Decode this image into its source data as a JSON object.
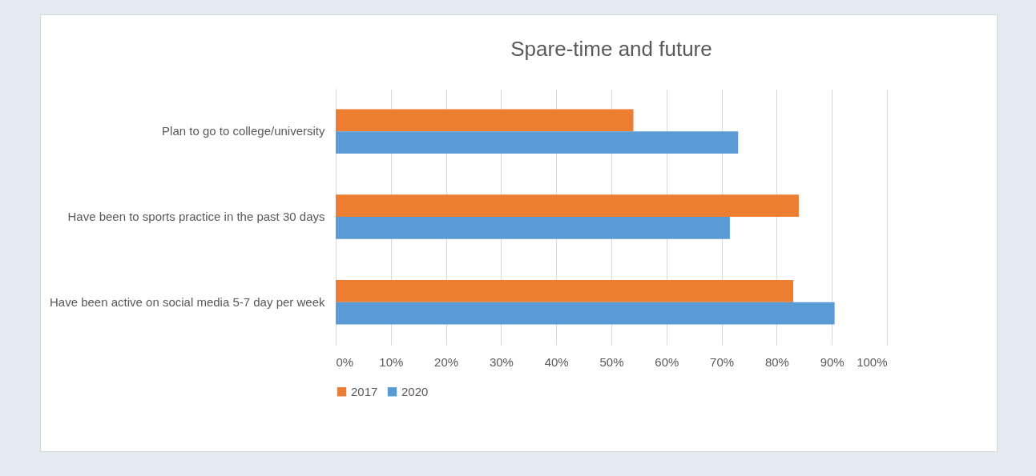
{
  "chart_data": {
    "type": "bar",
    "orientation": "horizontal",
    "title": "Spare-time and future",
    "categories": [
      "Plan to go  to college/university",
      "Have been to sports practice in the past 30 days",
      "Have been active on social media 5-7 day per week"
    ],
    "series": [
      {
        "name": "2017",
        "color": "#ed7d31",
        "values": [
          54,
          84,
          83
        ]
      },
      {
        "name": "2020",
        "color": "#5b9bd5",
        "values": [
          73,
          71.5,
          90.5
        ]
      }
    ],
    "xlim": [
      0,
      100
    ],
    "xticks": [
      {
        "value": 0,
        "label": "0%"
      },
      {
        "value": 10,
        "label": "10%"
      },
      {
        "value": 20,
        "label": "20%"
      },
      {
        "value": 30,
        "label": "30%"
      },
      {
        "value": 40,
        "label": "40%"
      },
      {
        "value": 50,
        "label": "50%"
      },
      {
        "value": 60,
        "label": "60%"
      },
      {
        "value": 70,
        "label": "70%"
      },
      {
        "value": 80,
        "label": "80%"
      },
      {
        "value": 90,
        "label": "90%"
      },
      {
        "value": 100,
        "label": "100%"
      }
    ],
    "grid": "x",
    "legend": "bottom"
  }
}
